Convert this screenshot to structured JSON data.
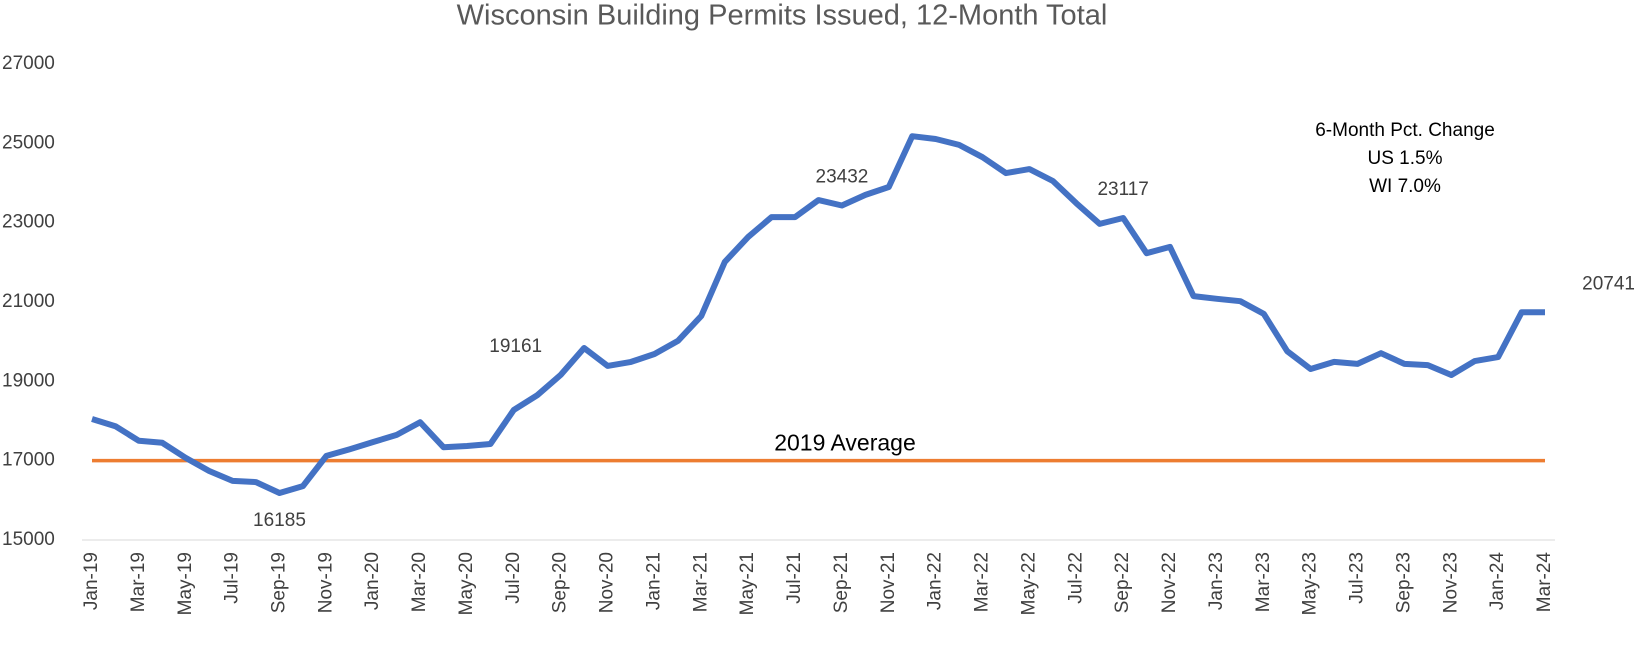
{
  "chart_data": {
    "type": "line",
    "title": "Wisconsin Building Permits Issued, 12-Month Total",
    "categories": [
      "Jan-19",
      null,
      "Mar-19",
      null,
      "May-19",
      null,
      "Jul-19",
      null,
      "Sep-19",
      null,
      "Nov-19",
      null,
      "Jan-20",
      null,
      "Mar-20",
      null,
      "May-20",
      null,
      "Jul-20",
      null,
      "Sep-20",
      null,
      "Nov-20",
      null,
      "Jan-21",
      null,
      "Mar-21",
      null,
      "May-21",
      null,
      "Jul-21",
      null,
      "Sep-21",
      null,
      "Nov-21",
      null,
      "Jan-22",
      null,
      "Mar-22",
      null,
      "May-22",
      null,
      "Jul-22",
      null,
      "Sep-22",
      null,
      "Nov-22",
      null,
      "Jan-23",
      null,
      "Mar-23",
      null,
      "May-23",
      null,
      "Jul-23",
      null,
      "Sep-23",
      null,
      "Nov-23",
      null,
      "Jan-24",
      null,
      "Mar-24"
    ],
    "series": [
      {
        "name": "12-Month Total",
        "color": "#4472c4",
        "values": [
          18050,
          17870,
          17500,
          17450,
          17070,
          16740,
          16490,
          16460,
          16185,
          16360,
          17120,
          17290,
          17470,
          17650,
          17970,
          17340,
          17370,
          17420,
          18280,
          18650,
          19161,
          19840,
          19390,
          19490,
          19690,
          20020,
          20650,
          22010,
          22640,
          23140,
          23140,
          23570,
          23432,
          23700,
          23900,
          25180,
          25110,
          24960,
          24650,
          24250,
          24350,
          24050,
          23490,
          22970,
          23117,
          22230,
          22390,
          21150,
          21080,
          21020,
          20700,
          19760,
          19310,
          19490,
          19440,
          19710,
          19440,
          19410,
          19160,
          19510,
          19610,
          20741,
          20741
        ],
        "value_labels": [
          null,
          null,
          null,
          null,
          null,
          null,
          null,
          null,
          "16185",
          null,
          null,
          null,
          null,
          null,
          null,
          null,
          null,
          null,
          null,
          null,
          "19161",
          null,
          null,
          null,
          null,
          null,
          null,
          null,
          null,
          null,
          null,
          null,
          "23432",
          null,
          null,
          null,
          null,
          null,
          null,
          null,
          null,
          null,
          null,
          null,
          "23117",
          null,
          null,
          null,
          null,
          null,
          null,
          null,
          null,
          null,
          null,
          null,
          null,
          null,
          null,
          null,
          null,
          null,
          "20741"
        ]
      }
    ],
    "reference_line": {
      "label": "2019 Average",
      "value": 17000,
      "color": "#ed7d31"
    },
    "annotation": [
      "6-Month Pct. Change",
      "US  1.5%",
      "WI  7.0%"
    ],
    "ylim": [
      15000,
      27000
    ],
    "yticks": [
      15000,
      17000,
      19000,
      21000,
      23000,
      25000,
      27000
    ],
    "grid": false
  }
}
